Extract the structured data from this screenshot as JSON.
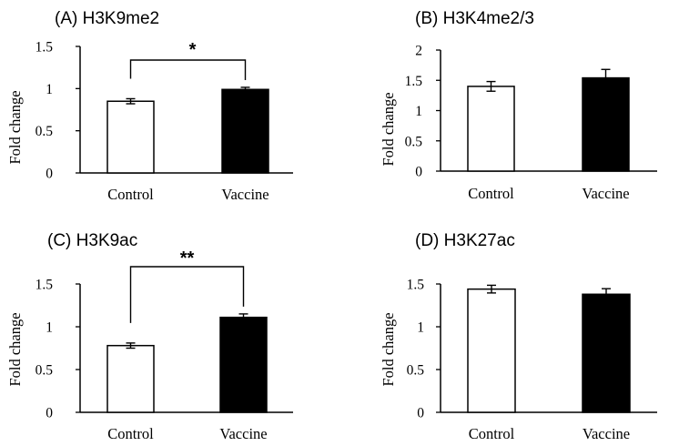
{
  "chart_data": [
    {
      "type": "bar",
      "title": "(A) H3K9me2",
      "ylabel": "Fold change",
      "categories": [
        "Control",
        "Vaccine"
      ],
      "values": [
        0.85,
        0.99
      ],
      "errors": [
        0.03,
        0.025
      ],
      "fills": [
        "#ffffff",
        "#000000"
      ],
      "ylim": [
        0,
        1.5
      ],
      "yticks": [
        "0",
        "0.5",
        "1",
        "1.5"
      ],
      "significance": "*"
    },
    {
      "type": "bar",
      "title": "(B) H3K4me2/3",
      "ylabel": "Fold change",
      "categories": [
        "Control",
        "Vaccine"
      ],
      "values": [
        1.4,
        1.54
      ],
      "errors": [
        0.08,
        0.14
      ],
      "fills": [
        "#ffffff",
        "#000000"
      ],
      "ylim": [
        0,
        2
      ],
      "yticks": [
        "0",
        "0.5",
        "1",
        "1.5",
        "2"
      ],
      "significance": ""
    },
    {
      "type": "bar",
      "title": "(C) H3K9ac",
      "ylabel": "Fold change",
      "categories": [
        "Control",
        "Vaccine"
      ],
      "values": [
        0.78,
        1.11
      ],
      "errors": [
        0.03,
        0.04
      ],
      "fills": [
        "#ffffff",
        "#000000"
      ],
      "ylim": [
        0,
        1.5
      ],
      "yticks": [
        "0",
        "0.5",
        "1",
        "1.5"
      ],
      "significance": "**"
    },
    {
      "type": "bar",
      "title": "(D) H3K27ac",
      "ylabel": "Fold change",
      "categories": [
        "Control",
        "Vaccine"
      ],
      "values": [
        1.44,
        1.38
      ],
      "errors": [
        0.045,
        0.065
      ],
      "fills": [
        "#ffffff",
        "#000000"
      ],
      "ylim": [
        0,
        1.5
      ],
      "yticks": [
        "0",
        "0.5",
        "1",
        "1.5"
      ],
      "significance": ""
    }
  ]
}
